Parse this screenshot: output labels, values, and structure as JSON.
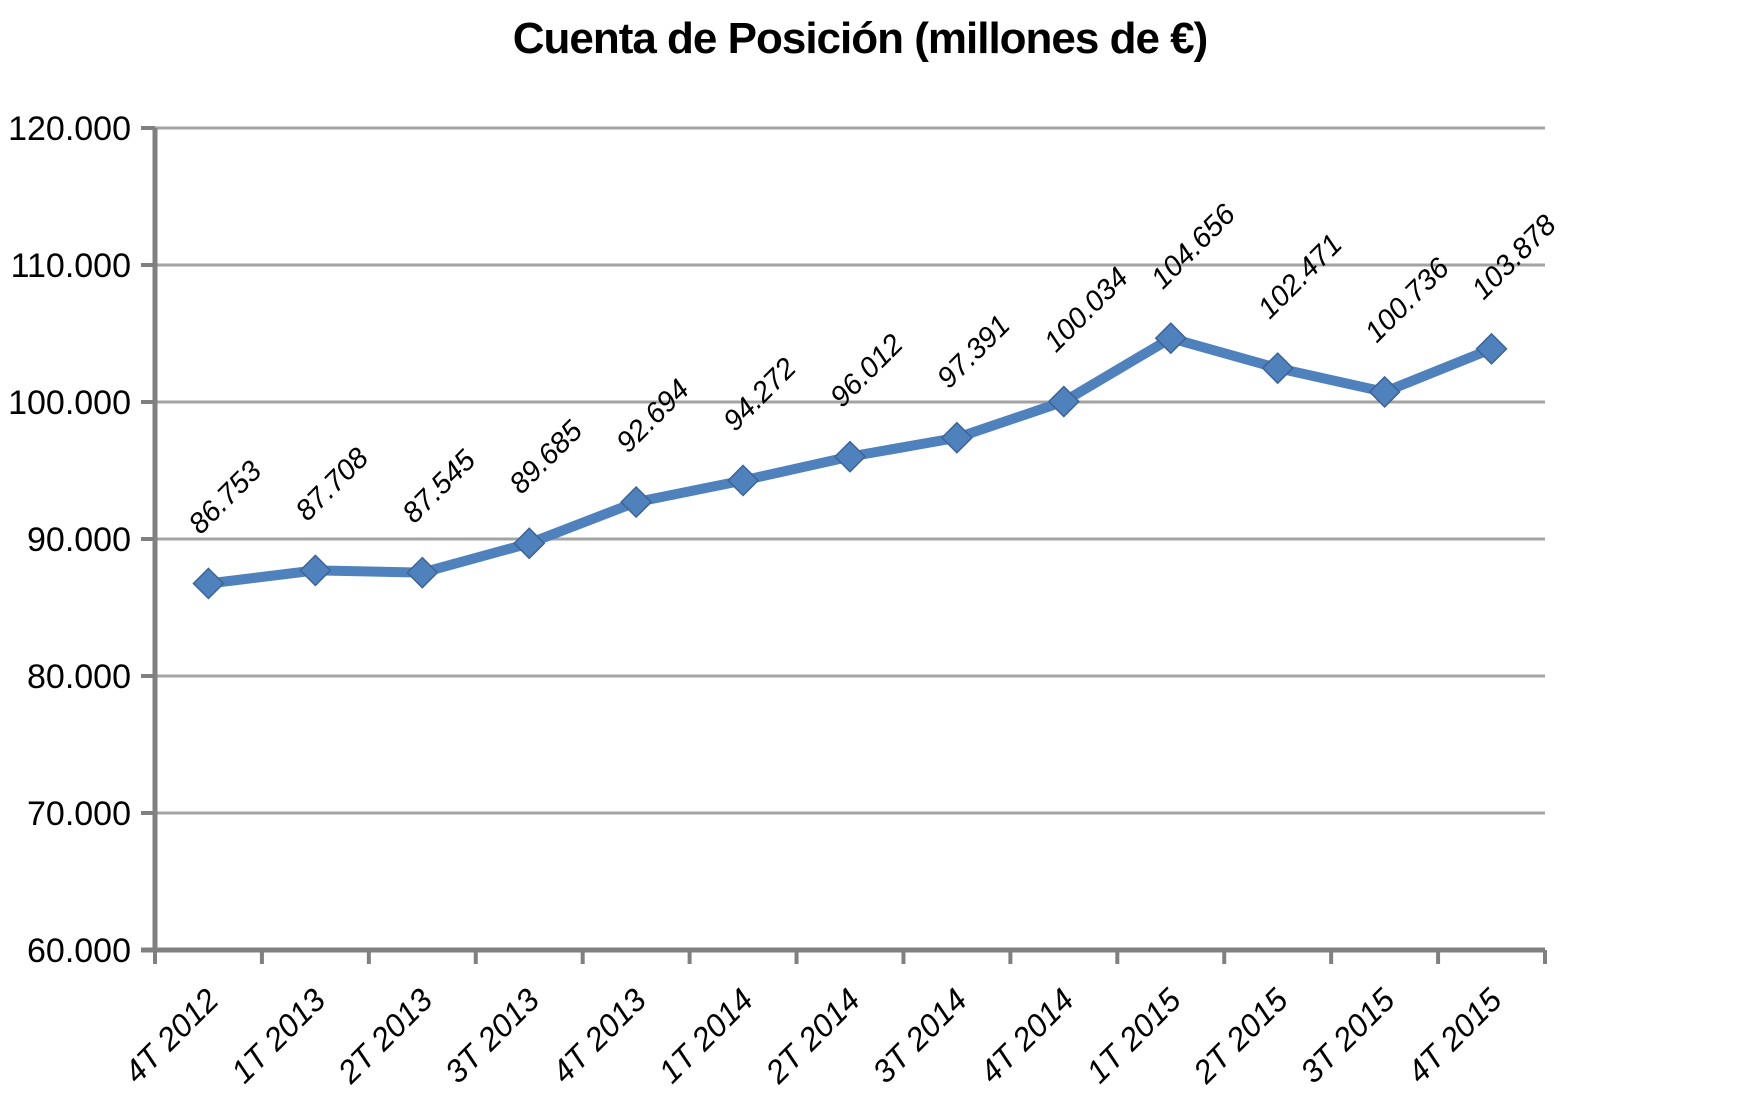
{
  "chart_data": {
    "type": "line",
    "title": "Cuenta de Posición (millones de €)",
    "categories": [
      "4T 2012",
      "1T 2013",
      "2T 2013",
      "3T 2013",
      "4T 2013",
      "1T 2014",
      "2T 2014",
      "3T 2014",
      "4T 2014",
      "1T 2015",
      "2T 2015",
      "3T 2015",
      "4T 2015"
    ],
    "values": [
      86753,
      87708,
      87545,
      89685,
      92694,
      94272,
      96012,
      97391,
      100034,
      104656,
      102471,
      100736,
      103878
    ],
    "data_labels": [
      "86.753",
      "87.708",
      "87.545",
      "89.685",
      "92.694",
      "94.272",
      "96.012",
      "97.391",
      "100.034",
      "104.656",
      "102.471",
      "100.736",
      "103.878"
    ],
    "xlabel": "",
    "ylabel": "",
    "ylim": [
      60000,
      120000
    ],
    "ytick_step": 10000,
    "ytick_labels": [
      "60.000",
      "70.000",
      "80.000",
      "90.000",
      "100.000",
      "110.000",
      "120.000"
    ],
    "grid": true,
    "legend": "none",
    "label_rotation": -45,
    "colors": {
      "series": "#4F81BD",
      "marker_fill": "#4F81BD",
      "marker_stroke": "#3C6494",
      "gridline": "#A3A3A3",
      "axis": "#808080",
      "text": "#000000",
      "background": "#FFFFFF"
    }
  }
}
